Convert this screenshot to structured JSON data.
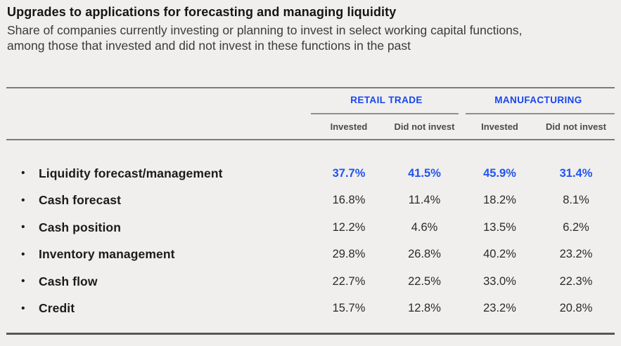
{
  "glyphs": {
    "bullet": "•"
  },
  "header": {
    "title": "Upgrades to applications for forecasting and managing liquidity",
    "subtitle": "Share of companies currently investing or planning to invest in select working capital functions, among those that invested and did not invest in these functions in the past"
  },
  "chart_data": {
    "type": "table",
    "title": "Upgrades to applications for forecasting and managing liquidity",
    "subtitle": "Share of companies currently investing or planning to invest in select working capital functions, among those that invested and did not invest in these functions in the past",
    "column_groups": [
      {
        "label": "RETAIL TRADE",
        "columns": [
          "Invested",
          "Did not invest"
        ]
      },
      {
        "label": "MANUFACTURING",
        "columns": [
          "Invested",
          "Did not invest"
        ]
      }
    ],
    "rows": [
      {
        "label": "Liquidity forecast/management",
        "values": [
          "37.7%",
          "41.5%",
          "45.9%",
          "31.4%"
        ],
        "highlighted": true
      },
      {
        "label": "Cash forecast",
        "values": [
          "16.8%",
          "11.4%",
          "18.2%",
          "8.1%"
        ],
        "highlighted": false
      },
      {
        "label": "Cash position",
        "values": [
          "12.2%",
          "4.6%",
          "13.5%",
          "6.2%"
        ],
        "highlighted": false
      },
      {
        "label": "Inventory management",
        "values": [
          "29.8%",
          "26.8%",
          "40.2%",
          "23.2%"
        ],
        "highlighted": false
      },
      {
        "label": "Cash flow",
        "values": [
          "22.7%",
          "22.5%",
          "33.0%",
          "22.3%"
        ],
        "highlighted": false
      },
      {
        "label": "Credit",
        "values": [
          "15.7%",
          "12.8%",
          "23.2%",
          "20.8%"
        ],
        "highlighted": false
      }
    ],
    "colors": {
      "group_header_blue": "#1745ee",
      "highlight_value_blue": "#2154f0",
      "text_dark": "#1b1b1b",
      "rule_gray": "#7b7b7b",
      "background": "#f0efed"
    },
    "layout_hints": {
      "grid": "off",
      "legend": "none"
    }
  }
}
